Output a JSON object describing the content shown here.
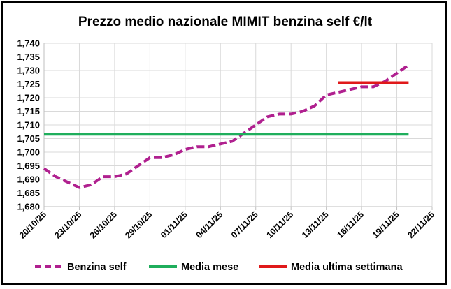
{
  "chart_data": {
    "type": "line",
    "title": "Prezzo medio nazionale MIMIT benzina self €/lt",
    "xlabel": "",
    "ylabel": "",
    "ylim": [
      1.68,
      1.74
    ],
    "y_ticks": [
      "1,680",
      "1,685",
      "1,690",
      "1,695",
      "1,700",
      "1,705",
      "1,710",
      "1,715",
      "1,720",
      "1,725",
      "1,730",
      "1,735",
      "1,740"
    ],
    "x_ticks": [
      "20/10/25",
      "23/10/25",
      "26/10/25",
      "29/10/25",
      "01/11/25",
      "04/11/25",
      "07/11/25",
      "10/11/25",
      "13/11/25",
      "16/11/25",
      "19/11/25",
      "22/11/25"
    ],
    "x_start": "2025-10-20",
    "x_end": "2025-11-22",
    "grid": true,
    "legend_position": "bottom",
    "series": [
      {
        "name": "Benzina self",
        "color": "#b0208f",
        "style": "dashed",
        "points": [
          {
            "x": "2025-10-20",
            "y": 1.694
          },
          {
            "x": "2025-10-21",
            "y": 1.691
          },
          {
            "x": "2025-10-22",
            "y": 1.689
          },
          {
            "x": "2025-10-23",
            "y": 1.687
          },
          {
            "x": "2025-10-24",
            "y": 1.688
          },
          {
            "x": "2025-10-25",
            "y": 1.691
          },
          {
            "x": "2025-10-26",
            "y": 1.691
          },
          {
            "x": "2025-10-27",
            "y": 1.692
          },
          {
            "x": "2025-10-28",
            "y": 1.695
          },
          {
            "x": "2025-10-29",
            "y": 1.698
          },
          {
            "x": "2025-10-30",
            "y": 1.698
          },
          {
            "x": "2025-10-31",
            "y": 1.699
          },
          {
            "x": "2025-11-01",
            "y": 1.701
          },
          {
            "x": "2025-11-02",
            "y": 1.702
          },
          {
            "x": "2025-11-03",
            "y": 1.702
          },
          {
            "x": "2025-11-04",
            "y": 1.703
          },
          {
            "x": "2025-11-05",
            "y": 1.704
          },
          {
            "x": "2025-11-06",
            "y": 1.707
          },
          {
            "x": "2025-11-07",
            "y": 1.71
          },
          {
            "x": "2025-11-08",
            "y": 1.713
          },
          {
            "x": "2025-11-09",
            "y": 1.714
          },
          {
            "x": "2025-11-10",
            "y": 1.714
          },
          {
            "x": "2025-11-11",
            "y": 1.715
          },
          {
            "x": "2025-11-12",
            "y": 1.717
          },
          {
            "x": "2025-11-13",
            "y": 1.721
          },
          {
            "x": "2025-11-14",
            "y": 1.722
          },
          {
            "x": "2025-11-15",
            "y": 1.723
          },
          {
            "x": "2025-11-16",
            "y": 1.724
          },
          {
            "x": "2025-11-17",
            "y": 1.724
          },
          {
            "x": "2025-11-18",
            "y": 1.726
          },
          {
            "x": "2025-11-19",
            "y": 1.729
          },
          {
            "x": "2025-11-20",
            "y": 1.732
          }
        ]
      },
      {
        "name": "Media mese",
        "color": "#1fae5c",
        "style": "solid",
        "points": [
          {
            "x": "2025-10-20",
            "y": 1.7066
          },
          {
            "x": "2025-11-20",
            "y": 1.7066
          }
        ]
      },
      {
        "name": "Media ultima settimana",
        "color": "#e0191a",
        "style": "solid",
        "points": [
          {
            "x": "2025-11-14",
            "y": 1.7255
          },
          {
            "x": "2025-11-20",
            "y": 1.7255
          }
        ]
      }
    ]
  }
}
